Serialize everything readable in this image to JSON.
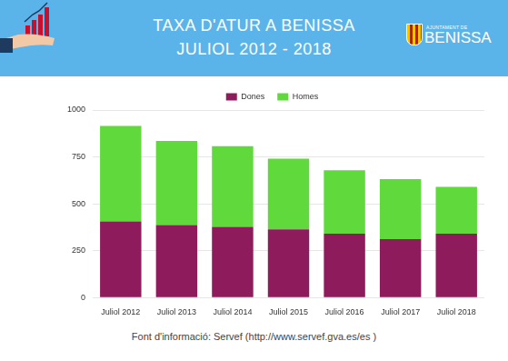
{
  "chart_data": {
    "type": "bar",
    "title": "TAXA D'ATUR A BENISSA",
    "subtitle": "JULIOL 2012 - 2018",
    "logo_text": [
      "AJUNTAMENT DE",
      "BENISSA"
    ],
    "source": "Font d'informació: Servef  (http://www.servef.gva.es/es )",
    "categories": [
      "Juliol 2012",
      "Juliol 2013",
      "Juliol 2014",
      "Juliol 2015",
      "Juliol 2016",
      "Juliol 2017",
      "Juliol 2018"
    ],
    "series": [
      {
        "name": "Dones",
        "color": "#8e1b5c",
        "values": [
          406,
          387,
          377,
          363,
          340,
          311,
          340
        ]
      },
      {
        "name": "Homes",
        "color": "#5fd93b",
        "values": [
          509,
          448,
          430,
          378,
          339,
          321,
          250
        ]
      }
    ],
    "stacked": true,
    "ylim": [
      0,
      1000
    ],
    "yticks": [
      0,
      250,
      500,
      750,
      1000
    ],
    "grid": true,
    "legend": "top"
  }
}
